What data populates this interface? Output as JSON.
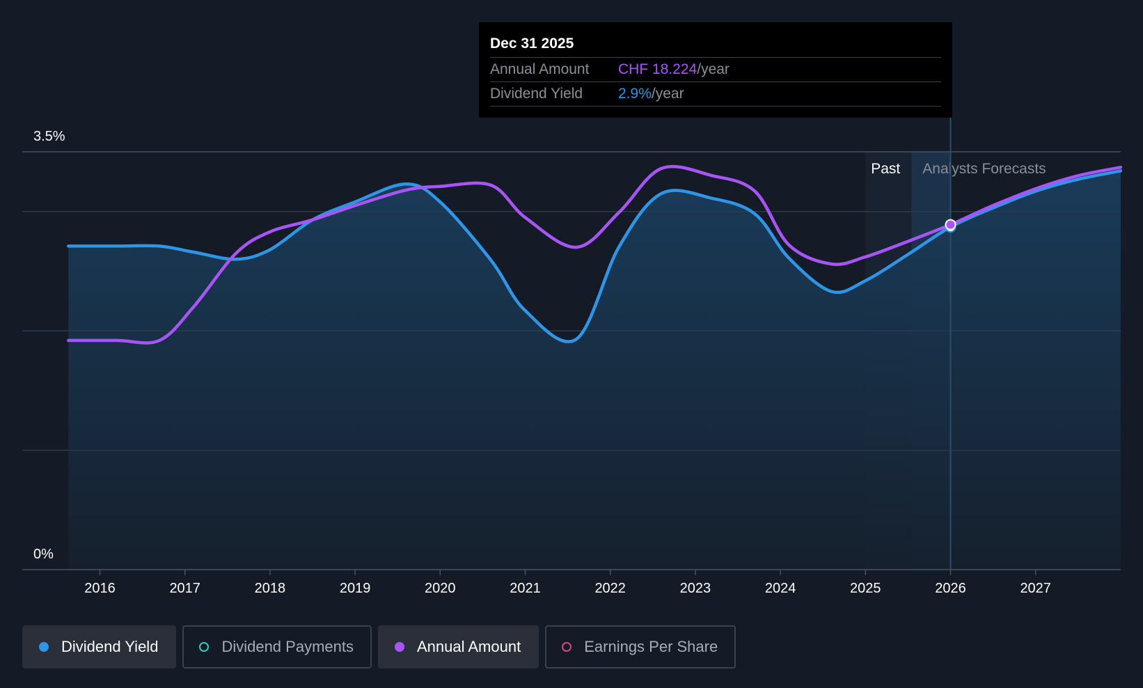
{
  "tooltip": {
    "date": "Dec 31 2025",
    "annual_label": "Annual Amount",
    "annual_value": "CHF 18.224",
    "annual_unit": "/year",
    "yield_label": "Dividend Yield",
    "yield_value": "2.9%",
    "yield_unit": "/year"
  },
  "legend": {
    "items": [
      {
        "label": "Dividend Yield",
        "active": true,
        "color": "#2f95e6",
        "icon": "filled-dot"
      },
      {
        "label": "Dividend Payments",
        "active": false,
        "color": "#3ec6c0",
        "icon": "ring-dot"
      },
      {
        "label": "Annual Amount",
        "active": true,
        "color": "#a855f7",
        "icon": "filled-dot"
      },
      {
        "label": "Earnings Per Share",
        "active": false,
        "color": "#d6457f",
        "icon": "ring-dot"
      }
    ]
  },
  "chart_data": {
    "type": "line",
    "y_axis_labels": [
      "3.5%",
      "0%"
    ],
    "ylim": [
      0,
      3.5
    ],
    "xlim": [
      2015.1,
      2028.0
    ],
    "x_tick_labels": [
      "2016",
      "2017",
      "2018",
      "2019",
      "2020",
      "2021",
      "2022",
      "2023",
      "2024",
      "2025",
      "2026",
      "2027"
    ],
    "x_ticks": [
      2016,
      2017,
      2018,
      2019,
      2020,
      2021,
      2022,
      2023,
      2024,
      2025,
      2026,
      2027
    ],
    "gridlines": [
      3.5,
      3.0,
      2.0,
      1.0
    ],
    "zones": {
      "past_label": "Past",
      "forecast_label": "Analysts Forecasts",
      "past_start": 2025.0,
      "forecast_start": 2025.54,
      "forecast_end": 2026.0
    },
    "highlight_x": 2026.0,
    "colors": {
      "yield": "#2f95e6",
      "annual": "#a855f7",
      "background": "#151b26"
    },
    "series": [
      {
        "name": "Dividend Yield",
        "color": "#2f95e6",
        "x": [
          2015.63,
          2016.2,
          2016.7,
          2017.1,
          2017.6,
          2018.0,
          2018.5,
          2019.0,
          2019.6,
          2020.0,
          2020.6,
          2021.0,
          2021.6,
          2022.1,
          2022.6,
          2023.2,
          2023.7,
          2024.1,
          2024.6,
          2025.0,
          2025.5,
          2026.0,
          2026.5,
          2027.0,
          2027.5,
          2028.0
        ],
        "values": [
          2.71,
          2.71,
          2.71,
          2.66,
          2.6,
          2.68,
          2.93,
          3.08,
          3.23,
          3.08,
          2.59,
          2.17,
          1.93,
          2.7,
          3.15,
          3.11,
          2.98,
          2.61,
          2.33,
          2.42,
          2.64,
          2.87,
          3.03,
          3.17,
          3.27,
          3.34
        ]
      },
      {
        "name": "Annual Amount",
        "color": "#a855f7",
        "x": [
          2015.63,
          2016.2,
          2016.7,
          2017.1,
          2017.6,
          2018.0,
          2018.5,
          2019.0,
          2019.6,
          2020.0,
          2020.6,
          2021.0,
          2021.6,
          2022.1,
          2022.6,
          2023.2,
          2023.7,
          2024.1,
          2024.6,
          2025.0,
          2025.5,
          2026.0,
          2026.5,
          2027.0,
          2027.5,
          2028.0
        ],
        "values": [
          1.92,
          1.92,
          1.92,
          2.2,
          2.65,
          2.83,
          2.93,
          3.05,
          3.18,
          3.21,
          3.22,
          2.95,
          2.7,
          2.99,
          3.36,
          3.3,
          3.17,
          2.72,
          2.56,
          2.62,
          2.75,
          2.89,
          3.05,
          3.19,
          3.3,
          3.37
        ]
      }
    ]
  }
}
